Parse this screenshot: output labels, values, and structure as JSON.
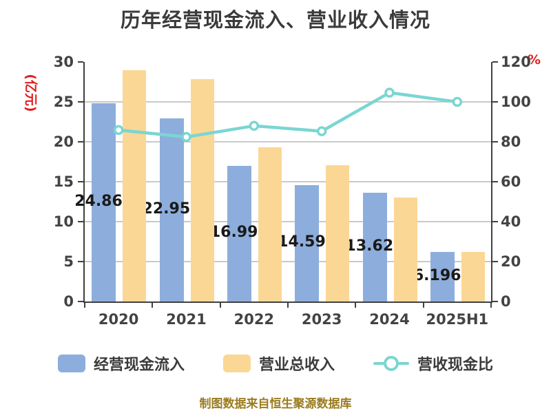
{
  "title": "历年经营现金流入、营业收入情况",
  "footer": "制图数据来自恒生聚源数据库",
  "colors": {
    "cash_bar": "#8DAEDC",
    "revenue_bar": "#FBD795",
    "ratio_line": "#7AD6D2",
    "grid": "#C9C9C9",
    "axis": "#3F3F3F",
    "tick_text": "#434343",
    "axis_name_red": "#E01F1F",
    "bar_label_text": "#1A1A1A",
    "footer_text": "#9A7B1E"
  },
  "chart_data": {
    "type": "bar",
    "title": "历年经营现金流入、营业收入情况",
    "categories": [
      "2020",
      "2021",
      "2022",
      "2023",
      "2024",
      "2025H1"
    ],
    "series": [
      {
        "name": "经营现金流入",
        "type": "bar",
        "axis": "left",
        "color": "#8DAEDC",
        "values": [
          24.866,
          22.955,
          16.997,
          14.598,
          13.625,
          6.1966
        ],
        "data_labels": [
          "24.866",
          "22.955",
          "16.997",
          "14.598",
          "13.625",
          "6.1966"
        ]
      },
      {
        "name": "营业总收入",
        "type": "bar",
        "axis": "left",
        "color": "#FBD795",
        "values": [
          29.0,
          27.86,
          19.3,
          17.1,
          13.03,
          6.2
        ]
      },
      {
        "name": "营收现金比",
        "type": "line",
        "axis": "right",
        "color": "#7AD6D2",
        "values": [
          85.9,
          82.4,
          88.0,
          85.3,
          104.6,
          100.0
        ]
      }
    ],
    "left_axis": {
      "name": "(亿元)",
      "min": 0,
      "max": 30,
      "ticks": [
        0,
        5,
        10,
        15,
        20,
        25,
        30
      ]
    },
    "right_axis": {
      "name": "%",
      "min": 0,
      "max": 120,
      "ticks": [
        0,
        20,
        40,
        60,
        80,
        100,
        120
      ]
    },
    "grid": true,
    "legend_position": "bottom"
  },
  "legend": {
    "items": [
      {
        "label": "经营现金流入",
        "marker": "bar",
        "color": "#8DAEDC"
      },
      {
        "label": "营业总收入",
        "marker": "bar",
        "color": "#FBD795"
      },
      {
        "label": "营收现金比",
        "marker": "line",
        "color": "#7AD6D2"
      }
    ]
  }
}
